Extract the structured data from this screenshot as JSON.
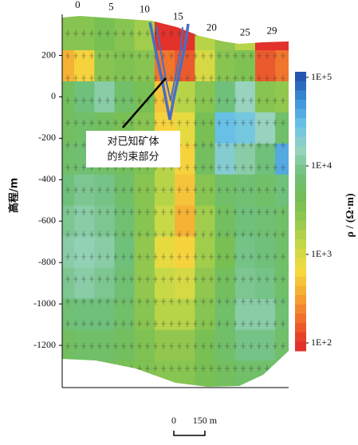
{
  "chart_data": {
    "type": "resistivity-section",
    "xlim": [
      -2.3,
      31.5
    ],
    "xticks": [
      0,
      5,
      10,
      15,
      20,
      25,
      29
    ],
    "ylabel": "高程/m",
    "ylim": [
      -1400,
      410
    ],
    "yticks": [
      200,
      0,
      -200,
      -400,
      -600,
      -800,
      -1000,
      -1200
    ],
    "grid_x": [
      -2,
      1,
      4,
      7,
      10,
      13,
      16,
      19,
      22,
      25,
      28,
      31
    ],
    "grid_y": [
      300,
      150,
      0,
      -150,
      -300,
      -450,
      -600,
      -750,
      -900,
      -1050,
      -1200,
      -1350
    ],
    "values": [
      [
        3000,
        3000,
        4000,
        3000,
        2000,
        100,
        100,
        1500,
        2500,
        1500,
        100,
        100
      ],
      [
        400,
        600,
        3000,
        3500,
        3000,
        200,
        150,
        1000,
        3000,
        3500,
        150,
        200
      ],
      [
        5000,
        8000,
        12000,
        6000,
        4000,
        500,
        1500,
        3000,
        8000,
        15000,
        3000,
        2500
      ],
      [
        5000,
        6000,
        5000,
        4000,
        3000,
        600,
        800,
        4000,
        30000,
        25000,
        15000,
        6000
      ],
      [
        6000,
        7000,
        6000,
        5000,
        3500,
        1500,
        600,
        5000,
        20000,
        12000,
        8000,
        40000
      ],
      [
        8000,
        10000,
        9000,
        6000,
        3000,
        1500,
        500,
        3000,
        6000,
        7000,
        6000,
        8000
      ],
      [
        10000,
        12000,
        10000,
        7000,
        3000,
        1200,
        400,
        2000,
        5000,
        8000,
        7000,
        6000
      ],
      [
        12000,
        14000,
        12000,
        8000,
        2500,
        800,
        600,
        2000,
        4000,
        9000,
        8000,
        6000
      ],
      [
        10000,
        12000,
        10000,
        7000,
        2500,
        1200,
        1000,
        2500,
        5000,
        10000,
        9000,
        6000
      ],
      [
        7000,
        8000,
        8000,
        6000,
        3000,
        1500,
        1500,
        3000,
        6000,
        12000,
        12000,
        7000
      ],
      [
        5000,
        6000,
        6000,
        5000,
        3500,
        2500,
        2500,
        4000,
        6000,
        9000,
        9000,
        6000
      ],
      [
        4000,
        5000,
        5000,
        4000,
        3500,
        3000,
        3000,
        4000,
        5000,
        6000,
        6000,
        5000
      ]
    ],
    "colorbar": {
      "label": "ρ / (Ω·m)",
      "log": true,
      "clim": [
        100,
        100000
      ],
      "ticks": [
        {
          "value": 100000,
          "label": "1E+5"
        },
        {
          "value": 10000,
          "label": "1E+4"
        },
        {
          "value": 1000,
          "label": "1E+3"
        },
        {
          "value": 100,
          "label": "1E+2"
        }
      ],
      "colors": [
        "#e3312b",
        "#f0702c",
        "#f5a833",
        "#f6da3f",
        "#c6d947",
        "#96c94e",
        "#74bd55",
        "#6fc07c",
        "#98d3bf",
        "#6cc4e8",
        "#3d93d9",
        "#2456b0"
      ]
    },
    "annotation": {
      "lines": [
        "对已知矿体",
        "的约束部分"
      ]
    },
    "scale_bar": {
      "ticks": [
        0,
        {
          "value": 150,
          "label": "150 m"
        }
      ]
    }
  }
}
